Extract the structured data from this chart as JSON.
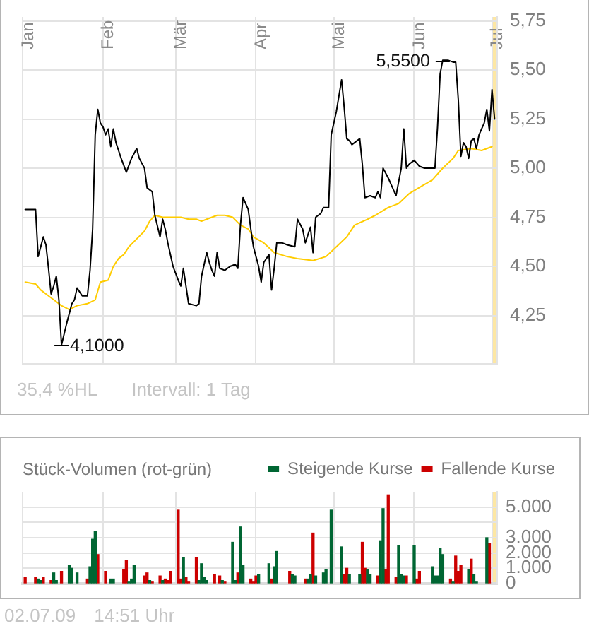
{
  "chart_data": [
    {
      "type": "line",
      "series": [
        {
          "color": "#000000",
          "x": [
            "--01-02",
            "--01-06",
            "--01-07",
            "--01-08",
            "--01-09",
            "--01-10",
            "--01-11",
            "--01-12",
            "--01-13",
            "--01-14",
            "--01-15",
            "--01-16",
            "--01-18",
            "--01-20",
            "--01-21",
            "--01-22",
            "--01-24",
            "--01-26",
            "--01-27",
            "--01-28",
            "--01-29",
            "--01-30",
            "--01-31",
            "--02-01",
            "--02-02",
            "--02-03",
            "--02-04",
            "--02-05",
            "--02-06",
            "--02-07",
            "--02-08",
            "--02-10",
            "--02-12",
            "--02-14",
            "--02-15",
            "--02-17",
            "--02-18",
            "--02-20",
            "--02-21",
            "--02-23",
            "--02-24",
            "--02-25",
            "--02-26",
            "--02-28",
            "--03-02",
            "--03-03",
            "--03-04",
            "--03-05",
            "--03-06",
            "--03-09",
            "--03-10",
            "--03-11",
            "--03-13",
            "--03-14",
            "--03-15",
            "--03-16",
            "--03-17",
            "--03-18",
            "--03-20",
            "--03-22",
            "--03-24",
            "--03-25",
            "--03-26",
            "--03-27",
            "--03-29",
            "--03-30",
            "--03-31",
            "--04-02",
            "--04-03",
            "--04-04",
            "--04-06",
            "--04-07",
            "--04-08",
            "--04-09",
            "--04-11",
            "--04-13",
            "--04-16",
            "--04-17",
            "--04-19",
            "--04-20",
            "--04-22",
            "--04-23",
            "--04-24",
            "--04-26",
            "--04-27",
            "--04-29",
            "--04-30",
            "--05-02",
            "--05-03",
            "--05-04",
            "--05-05",
            "--05-06",
            "--05-07",
            "--05-08",
            "--05-09",
            "--05-11",
            "--05-12",
            "--05-13",
            "--05-15",
            "--05-17",
            "--05-18",
            "--05-19",
            "--05-20",
            "--05-22",
            "--05-24",
            "--05-25",
            "--05-27",
            "--05-28",
            "--05-29",
            "--05-30",
            "--06-01",
            "--06-03",
            "--06-05",
            "--06-09",
            "--06-10",
            "--06-11",
            "--06-12",
            "--06-14",
            "--06-16",
            "--06-17",
            "--06-18",
            "--06-19",
            "--06-20",
            "--06-21",
            "--06-22",
            "--06-23",
            "--06-24",
            "--06-25",
            "--06-26",
            "--06-27",
            "--06-28",
            "--06-29",
            "--06-30",
            "--07-01",
            "--07-02"
          ],
          "values": [
            4.79,
            4.79,
            4.55,
            4.6,
            4.65,
            4.61,
            4.49,
            4.36,
            4.4,
            4.45,
            4.33,
            4.1,
            4.21,
            4.31,
            4.33,
            4.39,
            4.35,
            4.35,
            4.48,
            4.69,
            5.17,
            5.3,
            5.23,
            5.21,
            5.17,
            5.2,
            5.11,
            5.2,
            5.13,
            5.09,
            5.05,
            4.98,
            5.05,
            5.1,
            5.05,
            5.0,
            4.9,
            4.88,
            4.76,
            4.65,
            4.74,
            4.69,
            4.62,
            4.5,
            4.43,
            4.4,
            4.49,
            4.4,
            4.31,
            4.3,
            4.31,
            4.45,
            4.57,
            4.52,
            4.48,
            4.45,
            4.57,
            4.49,
            4.48,
            4.5,
            4.51,
            4.49,
            4.71,
            4.85,
            4.79,
            4.69,
            4.6,
            4.5,
            4.42,
            4.52,
            4.56,
            4.38,
            4.49,
            4.62,
            4.62,
            4.61,
            4.6,
            4.74,
            4.69,
            4.62,
            4.7,
            4.57,
            4.75,
            4.77,
            4.8,
            4.8,
            5.17,
            5.29,
            5.37,
            5.45,
            5.31,
            5.15,
            5.14,
            5.12,
            5.13,
            5.15,
            5.02,
            4.85,
            4.86,
            4.85,
            4.88,
            4.85,
            5.0,
            4.95,
            4.89,
            4.86,
            5.0,
            5.2,
            5.0,
            5.02,
            5.04,
            5.01,
            5.0,
            5.0,
            5.21,
            5.48,
            5.55,
            5.55,
            5.54,
            5.54,
            5.35,
            5.06,
            5.13,
            5.11,
            5.05,
            5.14,
            5.15,
            5.1,
            5.17,
            5.2,
            5.23,
            5.3,
            5.19,
            5.4,
            5.25
          ]
        },
        {
          "color": "#ffcc00",
          "x": [
            "--01-02",
            "--01-06",
            "--01-08",
            "--01-10",
            "--01-13",
            "--01-16",
            "--01-19",
            "--01-22",
            "--01-26",
            "--01-29",
            "--01-31",
            "--02-03",
            "--02-05",
            "--02-07",
            "--02-09",
            "--02-11",
            "--02-14",
            "--02-17",
            "--02-19",
            "--02-21",
            "--02-24",
            "--02-27",
            "--03-03",
            "--03-06",
            "--03-09",
            "--03-11",
            "--03-13",
            "--03-17",
            "--03-20",
            "--03-23",
            "--03-26",
            "--03-29",
            "--03-31",
            "--04-04",
            "--04-08",
            "--04-13",
            "--04-17",
            "--04-23",
            "--04-28",
            "--05-02",
            "--05-06",
            "--05-09",
            "--05-14",
            "--05-17",
            "--05-22",
            "--05-26",
            "--05-30",
            "--06-04",
            "--06-08",
            "--06-12",
            "--06-16",
            "--06-18",
            "--06-23",
            "--06-27",
            "--07-01"
          ],
          "values": [
            4.42,
            4.41,
            4.38,
            4.36,
            4.33,
            4.3,
            4.28,
            4.3,
            4.31,
            4.33,
            4.42,
            4.43,
            4.5,
            4.54,
            4.56,
            4.6,
            4.64,
            4.68,
            4.73,
            4.76,
            4.75,
            4.75,
            4.75,
            4.74,
            4.74,
            4.73,
            4.74,
            4.76,
            4.76,
            4.75,
            4.71,
            4.69,
            4.65,
            4.62,
            4.57,
            4.55,
            4.54,
            4.53,
            4.55,
            4.6,
            4.65,
            4.71,
            4.74,
            4.76,
            4.8,
            4.82,
            4.87,
            4.91,
            4.94,
            5.0,
            5.05,
            5.09,
            5.1,
            5.09,
            5.11
          ]
        }
      ],
      "xlim": [
        "--01-01",
        "--07-03"
      ],
      "xticks": [
        {
          "value": "--01-01",
          "label": "Jan"
        },
        {
          "value": "--02-01",
          "label": "Feb"
        },
        {
          "value": "--03-01",
          "label": "Mär"
        },
        {
          "value": "--04-01",
          "label": "Apr"
        },
        {
          "value": "--05-01",
          "label": "Mai"
        },
        {
          "value": "--06-01",
          "label": "Jun"
        },
        {
          "value": "--07-01",
          "label": "Jul"
        }
      ],
      "ylim": [
        4,
        5.77
      ],
      "yticks": [
        {
          "value": 4.25,
          "label": "4,25"
        },
        {
          "value": 4.5,
          "label": "4,50"
        },
        {
          "value": 4.75,
          "label": "4,75"
        },
        {
          "value": 5,
          "label": "5,00"
        },
        {
          "value": 5.25,
          "label": "5,25"
        },
        {
          "value": 5.5,
          "label": "5,50"
        },
        {
          "value": 5.75,
          "label": "5,75"
        }
      ],
      "grid": true,
      "bands": [
        {
          "axis": "x",
          "from": "--07-01",
          "to": "--07-03",
          "color": "#fde7a4"
        }
      ],
      "annotations": [
        {
          "text": "4,1000",
          "x": "--01-16",
          "y": 4.1
        },
        {
          "text": "5,5500",
          "x": "--06-12",
          "y": 5.55
        },
        "35,4 %HL",
        "Intervall: 1 Tag"
      ]
    },
    {
      "type": "bar",
      "title": "Stück-Volumen (rot-grün)",
      "x": [
        "--01-02",
        "--01-06",
        "--01-07",
        "--01-08",
        "--01-09",
        "--01-12",
        "--01-13",
        "--01-14",
        "--01-16",
        "--01-19",
        "--01-20",
        "--01-22",
        "--01-26",
        "--01-27",
        "--01-28",
        "--01-29",
        "--01-30",
        "--02-02",
        "--02-04",
        "--02-05",
        "--02-09",
        "--02-10",
        "--02-11",
        "--02-12",
        "--02-13",
        "--02-17",
        "--02-18",
        "--02-19",
        "--02-20",
        "--02-23",
        "--02-24",
        "--02-25",
        "--02-26",
        "--02-27",
        "--03-02",
        "--03-03",
        "--03-04",
        "--03-05",
        "--03-06",
        "--03-09",
        "--03-10",
        "--03-11",
        "--03-12",
        "--03-13",
        "--03-16",
        "--03-18",
        "--03-19",
        "--03-20",
        "--03-23",
        "--03-24",
        "--03-25",
        "--03-26",
        "--03-27",
        "--03-30",
        "--03-31",
        "--04-01",
        "--04-02",
        "--04-06",
        "--04-07",
        "--04-08",
        "--04-09",
        "--04-14",
        "--04-15",
        "--04-16",
        "--04-20",
        "--04-21",
        "--04-22",
        "--04-23",
        "--04-24",
        "--04-27",
        "--04-28",
        "--04-30",
        "--05-04",
        "--05-05",
        "--05-06",
        "--05-07",
        "--05-11",
        "--05-12",
        "--05-13",
        "--05-14",
        "--05-15",
        "--05-18",
        "--05-19",
        "--05-20",
        "--05-21",
        "--05-22",
        "--05-25",
        "--05-26",
        "--05-27",
        "--05-28",
        "--05-29",
        "--06-01",
        "--06-02",
        "--06-03",
        "--06-08",
        "--06-09",
        "--06-10",
        "--06-11",
        "--06-12",
        "--06-15",
        "--06-16",
        "--06-17",
        "--06-18",
        "--06-19",
        "--06-22",
        "--06-23",
        "--06-24",
        "--06-25",
        "--06-29",
        "--06-30"
      ],
      "series": [
        {
          "name": "Steigende Kurse",
          "color": "#006633",
          "values": [
            null,
            null,
            300,
            200,
            null,
            null,
            700,
            200,
            null,
            1200,
            1000,
            700,
            null,
            1100,
            2900,
            3400,
            null,
            null,
            300,
            300,
            null,
            null,
            100,
            300,
            1200,
            null,
            null,
            200,
            null,
            null,
            200,
            null,
            null,
            null,
            null,
            null,
            1700,
            null,
            null,
            null,
            200,
            1300,
            400,
            200,
            null,
            null,
            200,
            null,
            2700,
            200,
            null,
            3700,
            1200,
            null,
            null,
            null,
            600,
            1300,
            null,
            1100,
            2100,
            null,
            600,
            500,
            null,
            300,
            600,
            null,
            500,
            700,
            900,
            4800,
            2400,
            null,
            null,
            600,
            600,
            null,
            null,
            900,
            600,
            null,
            2800,
            4900,
            null,
            null,
            null,
            2500,
            600,
            500,
            null,
            2500,
            null,
            null,
            1100,
            500,
            500,
            2300,
            1900,
            null,
            100,
            null,
            null,
            null,
            900,
            null,
            600,
            100,
            3000,
            null
          ]
        },
        {
          "name": "Fallende Kurse",
          "color": "#cc0000",
          "values": [
            400,
            400,
            null,
            null,
            400,
            200,
            null,
            null,
            800,
            null,
            null,
            null,
            300,
            null,
            null,
            null,
            1900,
            800,
            null,
            null,
            900,
            1500,
            null,
            null,
            null,
            500,
            700,
            null,
            100,
            500,
            null,
            300,
            200,
            800,
            4800,
            300,
            null,
            400,
            100,
            1700,
            null,
            null,
            null,
            null,
            600,
            500,
            null,
            100,
            null,
            null,
            700,
            null,
            null,
            300,
            100,
            500,
            null,
            null,
            300,
            null,
            null,
            800,
            null,
            null,
            300,
            null,
            null,
            3300,
            null,
            null,
            null,
            null,
            null,
            600,
            1000,
            null,
            null,
            2700,
            1000,
            null,
            null,
            500,
            null,
            null,
            900,
            5800,
            400,
            null,
            null,
            null,
            500,
            null,
            300,
            800,
            null,
            null,
            null,
            null,
            null,
            300,
            null,
            1800,
            800,
            1200,
            null,
            1600,
            null,
            null,
            null,
            2600
          ]
        }
      ],
      "xlim": [
        "--01-01",
        "--07-03"
      ],
      "xticks": [
        {
          "value": "--01-01",
          "label": null
        },
        {
          "value": "--02-01",
          "label": null
        },
        {
          "value": "--03-01",
          "label": null
        },
        {
          "value": "--04-01",
          "label": null
        },
        {
          "value": "--05-01",
          "label": null
        },
        {
          "value": "--06-01",
          "label": null
        },
        {
          "value": "--07-01",
          "label": null
        }
      ],
      "tick_labels": "y",
      "ylim": [
        0,
        6000
      ],
      "yticks": [
        {
          "value": 0,
          "label": "0"
        },
        {
          "value": 1000,
          "label": "1.000"
        },
        {
          "value": 2000,
          "label": "2.000"
        },
        {
          "value": 3000,
          "label": "3.000"
        },
        {
          "value": 4000,
          "label": null
        },
        {
          "value": 5000,
          "label": "5.000"
        }
      ],
      "grid": true,
      "legend": "top right",
      "bands": [
        {
          "axis": "x",
          "from": "--07-01",
          "to": "--07-03",
          "color": "#fde7a4"
        }
      ],
      "annotations": [
        "02.07.09",
        "14:51 Uhr"
      ]
    }
  ]
}
